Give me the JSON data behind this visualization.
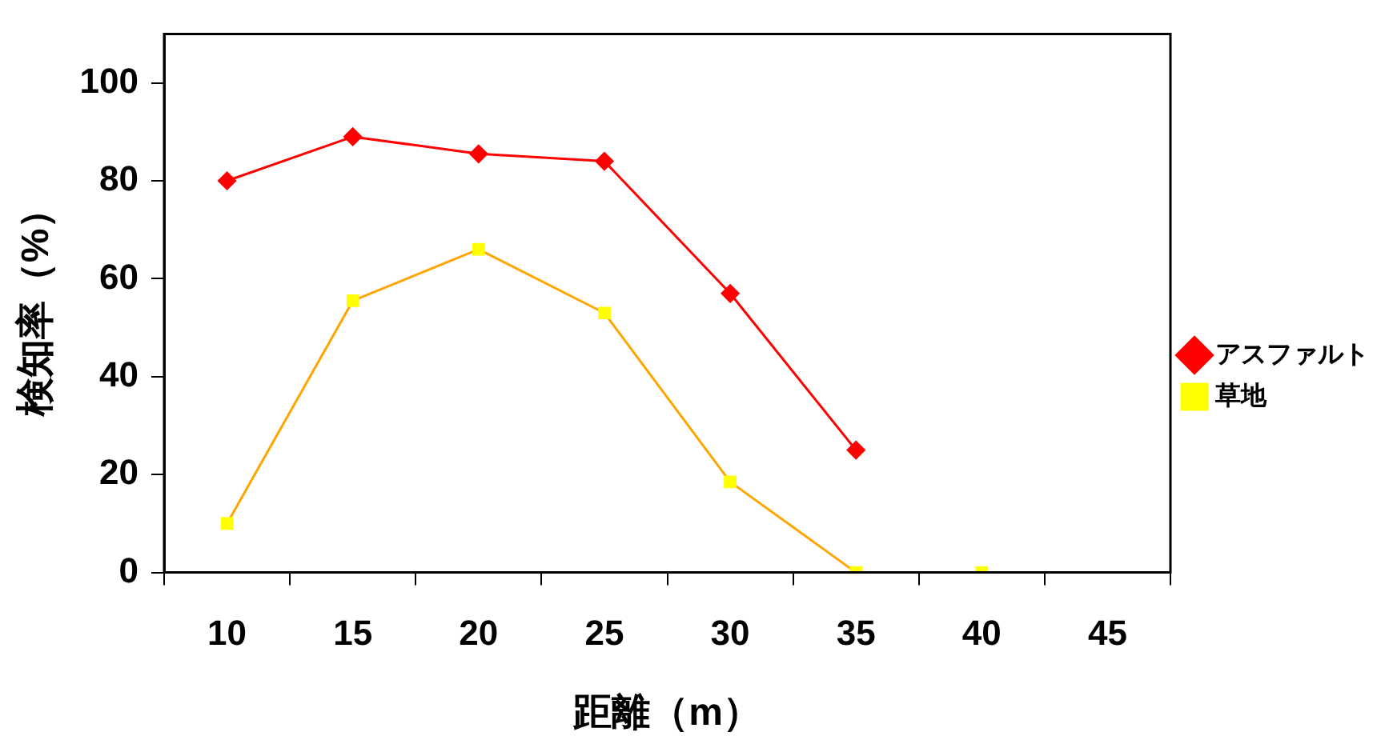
{
  "chart_data": {
    "type": "line",
    "xlabel": "距離（m）",
    "ylabel": "検知率（%）",
    "categories": [
      "10",
      "15",
      "20",
      "25",
      "30",
      "35",
      "40",
      "45"
    ],
    "series": [
      {
        "name": "アスファルト",
        "color": "#ff0000",
        "marker": "diamond",
        "values": [
          80,
          89,
          85.5,
          84,
          57,
          25,
          null,
          null
        ]
      },
      {
        "name": "草地",
        "color": "#ffa500",
        "colors": [
          "#ffff00",
          "#ffff00",
          "#ffff00",
          "#ffff00",
          "#ffff00",
          "#ffff00",
          "#ffff00",
          "#ffff00"
        ],
        "marker": "square",
        "values": [
          10,
          55.5,
          66,
          53,
          18.5,
          0,
          0,
          null
        ]
      }
    ],
    "ylim": [
      0,
      110
    ],
    "yticks": [
      0,
      20,
      40,
      60,
      80,
      100
    ],
    "grid": false,
    "legend": "right"
  }
}
